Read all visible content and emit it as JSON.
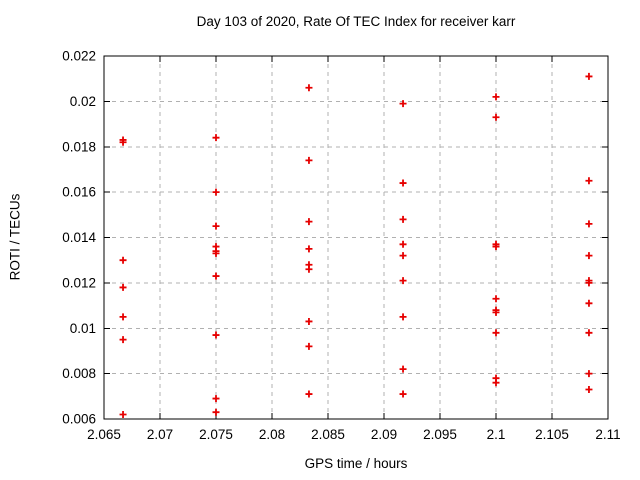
{
  "page": {
    "background_color": "#ffffff",
    "text_color": "#000000"
  },
  "chart_data": {
    "type": "scatter",
    "title": "Day 103 of 2020, Rate Of TEC Index for receiver karr",
    "xlabel": "GPS time / hours",
    "ylabel": "ROTI / TECUs",
    "xlim": [
      2.065,
      2.11
    ],
    "ylim": [
      0.006,
      0.022
    ],
    "x_ticks": [
      2.065,
      2.07,
      2.075,
      2.08,
      2.085,
      2.09,
      2.095,
      2.1,
      2.105,
      2.11
    ],
    "x_tick_labels": [
      "2.065",
      "2.07",
      "2.075",
      "2.08",
      "2.085",
      "2.09",
      "2.095",
      "2.1",
      "2.105",
      "2.11"
    ],
    "y_ticks": [
      0.006,
      0.008,
      0.01,
      0.012,
      0.014,
      0.016,
      0.018,
      0.02,
      0.022
    ],
    "y_tick_labels": [
      "0.006",
      "0.008",
      "0.01",
      "0.012",
      "0.014",
      "0.016",
      "0.018",
      "0.02",
      "0.022"
    ],
    "grid": true,
    "legend": "none",
    "marker": {
      "shape": "plus",
      "color": "#e60000",
      "size": 7
    },
    "grid_color": "#b0b0b0",
    "border_color": "#000000",
    "series": [
      {
        "name": "ROTI",
        "points": [
          [
            2.0667,
            0.0183
          ],
          [
            2.0667,
            0.0182
          ],
          [
            2.0667,
            0.013
          ],
          [
            2.0667,
            0.0118
          ],
          [
            2.0667,
            0.0105
          ],
          [
            2.0667,
            0.0095
          ],
          [
            2.0667,
            0.0062
          ],
          [
            2.075,
            0.0184
          ],
          [
            2.075,
            0.016
          ],
          [
            2.075,
            0.0145
          ],
          [
            2.075,
            0.0136
          ],
          [
            2.075,
            0.0134
          ],
          [
            2.075,
            0.0133
          ],
          [
            2.075,
            0.0123
          ],
          [
            2.075,
            0.0097
          ],
          [
            2.075,
            0.0069
          ],
          [
            2.075,
            0.0063
          ],
          [
            2.0833,
            0.0206
          ],
          [
            2.0833,
            0.0174
          ],
          [
            2.0833,
            0.0147
          ],
          [
            2.0833,
            0.0135
          ],
          [
            2.0833,
            0.0128
          ],
          [
            2.0833,
            0.0126
          ],
          [
            2.0833,
            0.0103
          ],
          [
            2.0833,
            0.0092
          ],
          [
            2.0833,
            0.0071
          ],
          [
            2.0917,
            0.0199
          ],
          [
            2.0917,
            0.0164
          ],
          [
            2.0917,
            0.0148
          ],
          [
            2.0917,
            0.0137
          ],
          [
            2.0917,
            0.0132
          ],
          [
            2.0917,
            0.0121
          ],
          [
            2.0917,
            0.0105
          ],
          [
            2.0917,
            0.0082
          ],
          [
            2.0917,
            0.0071
          ],
          [
            2.1,
            0.0202
          ],
          [
            2.1,
            0.0193
          ],
          [
            2.1,
            0.0137
          ],
          [
            2.1,
            0.0136
          ],
          [
            2.1,
            0.0113
          ],
          [
            2.1,
            0.0108
          ],
          [
            2.1,
            0.0107
          ],
          [
            2.1,
            0.0098
          ],
          [
            2.1,
            0.0078
          ],
          [
            2.1,
            0.0076
          ],
          [
            2.1083,
            0.0211
          ],
          [
            2.1083,
            0.0165
          ],
          [
            2.1083,
            0.0146
          ],
          [
            2.1083,
            0.0132
          ],
          [
            2.1083,
            0.0121
          ],
          [
            2.1083,
            0.012
          ],
          [
            2.1083,
            0.0111
          ],
          [
            2.1083,
            0.0098
          ],
          [
            2.1083,
            0.008
          ],
          [
            2.1083,
            0.0073
          ]
        ]
      }
    ]
  }
}
